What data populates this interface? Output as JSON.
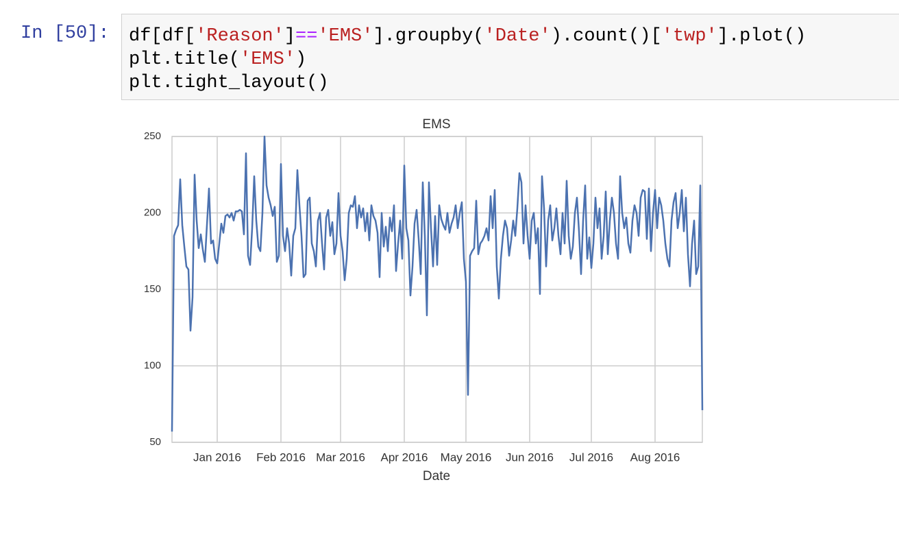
{
  "cell": {
    "prompt": "In [50]:",
    "code": [
      [
        {
          "text": "df[df[",
          "color": "#000000"
        },
        {
          "text": "'Reason'",
          "color": "#ba2121"
        },
        {
          "text": "]",
          "color": "#000000"
        },
        {
          "text": "==",
          "color": "#aa22ff"
        },
        {
          "text": "'EMS'",
          "color": "#ba2121"
        },
        {
          "text": "].groupby(",
          "color": "#000000"
        },
        {
          "text": "'Date'",
          "color": "#ba2121"
        },
        {
          "text": ").count()[",
          "color": "#000000"
        },
        {
          "text": "'twp'",
          "color": "#ba2121"
        },
        {
          "text": "].plot()",
          "color": "#000000"
        }
      ],
      [
        {
          "text": "plt.title(",
          "color": "#000000"
        },
        {
          "text": "'EMS'",
          "color": "#ba2121"
        },
        {
          "text": ")",
          "color": "#000000"
        }
      ],
      [
        {
          "text": "plt.tight_layout()",
          "color": "#000000"
        }
      ]
    ]
  },
  "chart_data": {
    "type": "line",
    "title": "EMS",
    "x_label": "Date",
    "color": "#4c72b0",
    "grid": true,
    "xlim": [
      0,
      258
    ],
    "xticks": [
      {
        "value": 22,
        "label": "Jan 2016"
      },
      {
        "value": 53,
        "label": "Feb 2016"
      },
      {
        "value": 82,
        "label": "Mar 2016"
      },
      {
        "value": 113,
        "label": "Apr 2016"
      },
      {
        "value": 143,
        "label": "May 2016"
      },
      {
        "value": 174,
        "label": "Jun 2016"
      },
      {
        "value": 204,
        "label": "Jul 2016"
      },
      {
        "value": 235,
        "label": "Aug 2016"
      }
    ],
    "ylim": [
      50,
      250
    ],
    "yticks": [
      50,
      100,
      150,
      200,
      250
    ],
    "values": [
      57,
      185,
      189,
      192,
      222,
      192,
      178,
      165,
      163,
      123,
      145,
      225,
      195,
      177,
      186,
      176,
      168,
      192,
      216,
      180,
      182,
      170,
      167,
      180,
      193,
      187,
      198,
      199,
      197,
      200,
      195,
      201,
      201,
      202,
      201,
      186,
      239,
      172,
      166,
      190,
      224,
      195,
      178,
      175,
      200,
      250,
      218,
      210,
      205,
      198,
      204,
      168,
      172,
      232,
      185,
      175,
      190,
      180,
      159,
      185,
      190,
      228,
      205,
      185,
      158,
      160,
      208,
      210,
      180,
      175,
      165,
      195,
      200,
      180,
      163,
      197,
      202,
      185,
      194,
      173,
      180,
      213,
      185,
      175,
      156,
      170,
      200,
      205,
      204,
      211,
      190,
      205,
      197,
      203,
      188,
      200,
      182,
      205,
      198,
      195,
      187,
      158,
      200,
      178,
      191,
      175,
      197,
      188,
      205,
      162,
      180,
      195,
      170,
      231,
      190,
      182,
      146,
      165,
      193,
      202,
      183,
      160,
      220,
      185,
      133,
      220,
      190,
      165,
      198,
      166,
      205,
      196,
      192,
      189,
      200,
      187,
      193,
      197,
      205,
      190,
      200,
      207,
      170,
      155,
      81,
      172,
      175,
      177,
      208,
      173,
      180,
      182,
      185,
      190,
      182,
      211,
      190,
      215,
      165,
      144,
      170,
      185,
      195,
      190,
      172,
      182,
      195,
      185,
      203,
      226,
      220,
      180,
      205,
      185,
      170,
      195,
      200,
      180,
      190,
      147,
      224,
      203,
      165,
      195,
      205,
      182,
      190,
      203,
      185,
      173,
      200,
      180,
      221,
      185,
      170,
      178,
      200,
      210,
      188,
      160,
      195,
      218,
      170,
      184,
      164,
      180,
      210,
      190,
      203,
      170,
      185,
      214,
      173,
      195,
      210,
      200,
      180,
      170,
      224,
      200,
      190,
      197,
      180,
      174,
      195,
      205,
      200,
      185,
      210,
      215,
      214,
      183,
      216,
      175,
      200,
      215,
      190,
      210,
      205,
      195,
      180,
      170,
      165,
      195,
      207,
      213,
      190,
      200,
      215,
      188,
      210,
      173,
      152,
      180,
      195,
      160,
      165,
      218,
      71
    ]
  }
}
